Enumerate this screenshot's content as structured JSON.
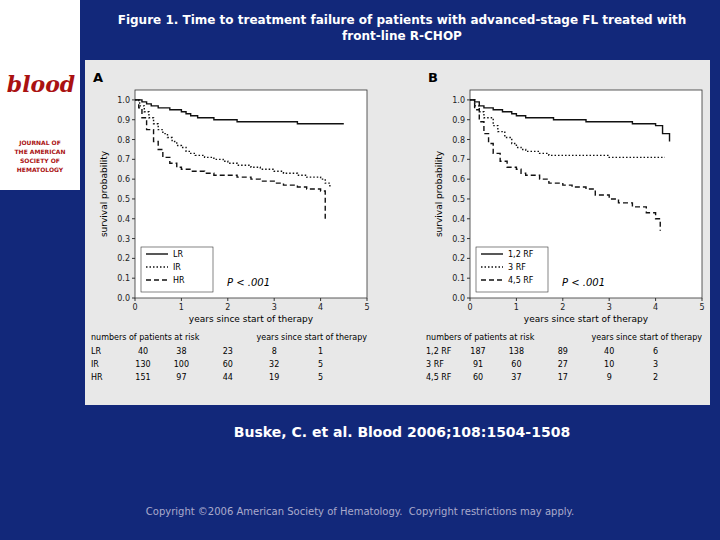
{
  "title": "Figure 1. Time to treatment failure of patients with advanced-stage FL treated with front-line R-CHOP",
  "subtitle": "Buske, C. et al. Blood 2006;108:1504-1508",
  "annotations": [
    "Copyright ©2006 American Society of Hematology.  Copyright restrictions may apply.",
    "blood",
    "JOURNAL OF",
    "THE AMERICAN",
    "SOCIETY OF",
    "HEMATOLOGY"
  ],
  "chart_data": [
    {
      "type": "step",
      "title": "A",
      "xlabel": "years since start of therapy",
      "ylabel": "survival probability",
      "xlim": [
        0,
        5
      ],
      "ylim": [
        0.0,
        1.05
      ],
      "xticks": [
        0,
        1,
        2,
        3,
        4,
        5
      ],
      "yticks": [
        {
          "value": 0.0,
          "label": "0.0"
        },
        0.1,
        0.2,
        0.3,
        0.4,
        0.5,
        0.6,
        0.7,
        0.8,
        0.9,
        {
          "value": 1.0,
          "label": "1.0"
        }
      ],
      "grid": false,
      "legend": "lower left",
      "annotations": [
        "P < .001"
      ],
      "series": [
        {
          "name": "LR",
          "color": "#111111",
          "line_style": "solid",
          "x": [
            0,
            0.08,
            0.15,
            0.25,
            0.35,
            0.5,
            0.65,
            0.75,
            1.0,
            1.1,
            1.2,
            1.35,
            1.5,
            1.7,
            1.9,
            2.0,
            2.2,
            2.5,
            2.7,
            3.0,
            3.2,
            3.5,
            3.8,
            4.0,
            4.2,
            4.5
          ],
          "values": [
            1.0,
            1.0,
            0.99,
            0.98,
            0.97,
            0.96,
            0.96,
            0.95,
            0.94,
            0.93,
            0.92,
            0.91,
            0.91,
            0.9,
            0.9,
            0.9,
            0.89,
            0.89,
            0.89,
            0.89,
            0.89,
            0.88,
            0.88,
            0.88,
            0.88,
            0.88
          ]
        },
        {
          "name": "IR",
          "color": "#111111",
          "line_style": "dotted",
          "x": [
            0,
            0.1,
            0.2,
            0.3,
            0.4,
            0.5,
            0.6,
            0.7,
            0.8,
            0.9,
            1.0,
            1.1,
            1.2,
            1.3,
            1.5,
            1.7,
            1.9,
            2.0,
            2.2,
            2.5,
            2.7,
            3.0,
            3.2,
            3.5,
            3.7,
            4.0,
            4.1,
            4.2
          ],
          "values": [
            1.0,
            0.97,
            0.94,
            0.91,
            0.88,
            0.85,
            0.83,
            0.81,
            0.79,
            0.77,
            0.76,
            0.74,
            0.73,
            0.72,
            0.71,
            0.7,
            0.69,
            0.68,
            0.67,
            0.66,
            0.65,
            0.64,
            0.63,
            0.62,
            0.61,
            0.6,
            0.58,
            0.56
          ]
        },
        {
          "name": "HR",
          "color": "#111111",
          "line_style": "dashed",
          "x": [
            0,
            0.08,
            0.15,
            0.25,
            0.4,
            0.5,
            0.6,
            0.75,
            0.9,
            1.0,
            1.1,
            1.2,
            1.5,
            1.7,
            2.0,
            2.2,
            2.5,
            2.7,
            3.0,
            3.2,
            3.5,
            3.7,
            4.0,
            4.1
          ],
          "values": [
            1.0,
            0.96,
            0.91,
            0.85,
            0.79,
            0.75,
            0.71,
            0.68,
            0.66,
            0.65,
            0.65,
            0.64,
            0.63,
            0.62,
            0.62,
            0.61,
            0.6,
            0.59,
            0.58,
            0.57,
            0.56,
            0.55,
            0.54,
            0.4
          ]
        }
      ],
      "at_risk": {
        "title": "numbers of patients at risk",
        "x": [
          0,
          1,
          2,
          3,
          4
        ],
        "rows": [
          {
            "name": "LR",
            "values": [
              40,
              38,
              23,
              8,
              1
            ]
          },
          {
            "name": "IR",
            "values": [
              130,
              100,
              60,
              32,
              5
            ]
          },
          {
            "name": "HR",
            "values": [
              151,
              97,
              44,
              19,
              5
            ]
          }
        ]
      }
    },
    {
      "type": "step",
      "title": "B",
      "xlabel": "years since start of therapy",
      "ylabel": "survival probability",
      "xlim": [
        0,
        5
      ],
      "ylim": [
        0.0,
        1.05
      ],
      "xticks": [
        0,
        1,
        2,
        3,
        4,
        5
      ],
      "yticks": [
        {
          "value": 0.0,
          "label": "0.0"
        },
        0.1,
        0.2,
        0.3,
        0.4,
        0.5,
        0.6,
        0.7,
        0.8,
        0.9,
        {
          "value": 1.0,
          "label": "1.0"
        }
      ],
      "grid": false,
      "legend": "lower left",
      "annotations": [
        "P < .001"
      ],
      "series": [
        {
          "name": "1,2 RF",
          "color": "#111111",
          "line_style": "solid",
          "x": [
            0,
            0.1,
            0.2,
            0.3,
            0.5,
            0.7,
            0.9,
            1.0,
            1.2,
            1.5,
            1.8,
            2.0,
            2.5,
            3.0,
            3.5,
            4.0,
            4.15,
            4.3
          ],
          "values": [
            1.0,
            0.99,
            0.97,
            0.96,
            0.95,
            0.94,
            0.93,
            0.92,
            0.91,
            0.91,
            0.9,
            0.9,
            0.89,
            0.89,
            0.88,
            0.87,
            0.83,
            0.79
          ]
        },
        {
          "name": "3 RF",
          "color": "#111111",
          "line_style": "dotted",
          "x": [
            0,
            0.1,
            0.2,
            0.3,
            0.5,
            0.6,
            0.75,
            0.9,
            1.0,
            1.1,
            1.2,
            1.5,
            1.7,
            2.0,
            2.5,
            3.0,
            3.5,
            4.0,
            4.2
          ],
          "values": [
            1.0,
            0.97,
            0.94,
            0.91,
            0.87,
            0.84,
            0.81,
            0.78,
            0.76,
            0.75,
            0.74,
            0.73,
            0.72,
            0.72,
            0.72,
            0.71,
            0.71,
            0.71,
            0.71
          ]
        },
        {
          "name": "4,5 RF",
          "color": "#111111",
          "line_style": "dashed",
          "x": [
            0,
            0.1,
            0.2,
            0.3,
            0.4,
            0.5,
            0.65,
            0.8,
            1.0,
            1.1,
            1.2,
            1.5,
            1.7,
            2.0,
            2.2,
            2.5,
            2.7,
            3.0,
            3.2,
            3.5,
            3.8,
            4.0,
            4.1
          ],
          "values": [
            1.0,
            0.95,
            0.89,
            0.83,
            0.78,
            0.73,
            0.69,
            0.66,
            0.65,
            0.63,
            0.62,
            0.6,
            0.58,
            0.57,
            0.56,
            0.55,
            0.52,
            0.5,
            0.48,
            0.46,
            0.43,
            0.4,
            0.34
          ]
        }
      ],
      "at_risk": {
        "title": "numbers of patients at risk",
        "x": [
          0,
          1,
          2,
          3,
          4
        ],
        "rows": [
          {
            "name": "1,2 RF",
            "values": [
              187,
              138,
              89,
              40,
              6
            ]
          },
          {
            "name": "3 RF",
            "values": [
              91,
              60,
              27,
              10,
              3
            ]
          },
          {
            "name": "4,5 RF",
            "values": [
              60,
              37,
              17,
              9,
              2
            ]
          }
        ]
      }
    }
  ]
}
